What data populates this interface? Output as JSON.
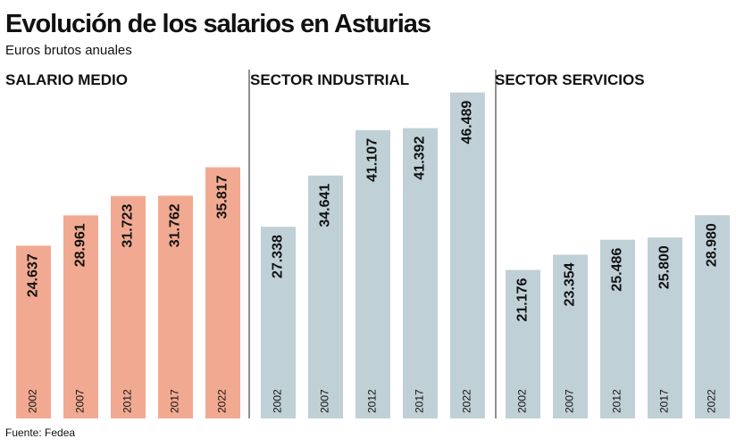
{
  "title": "Evolución de los salarios en Asturias",
  "subtitle": "Euros brutos anuales",
  "source": "Fuente: Fedea",
  "chart_data": [
    {
      "type": "bar",
      "title": "SALARIO MEDIO",
      "categories": [
        "2002",
        "2007",
        "2012",
        "2017",
        "2022"
      ],
      "values": [
        24637,
        28961,
        31723,
        31762,
        35817
      ],
      "value_labels": [
        "24.637",
        "28.961",
        "31.723",
        "31.762",
        "35.817"
      ],
      "color": "#f1aa91",
      "ylim": [
        0,
        50000
      ]
    },
    {
      "type": "bar",
      "title": "SECTOR INDUSTRIAL",
      "categories": [
        "2002",
        "2007",
        "2012",
        "2017",
        "2022"
      ],
      "values": [
        27338,
        34641,
        41107,
        41392,
        46489
      ],
      "value_labels": [
        "27.338",
        "34.641",
        "41.107",
        "41.392",
        "46.489"
      ],
      "color": "#c0d0d7",
      "ylim": [
        0,
        50000
      ]
    },
    {
      "type": "bar",
      "title": "SECTOR SERVICIOS",
      "categories": [
        "2002",
        "2007",
        "2012",
        "2017",
        "2022"
      ],
      "values": [
        21176,
        23354,
        25486,
        25800,
        28980
      ],
      "value_labels": [
        "21.176",
        "23.354",
        "25.486",
        "25.800",
        "28.980"
      ],
      "color": "#c0d0d7",
      "ylim": [
        0,
        50000
      ]
    }
  ]
}
